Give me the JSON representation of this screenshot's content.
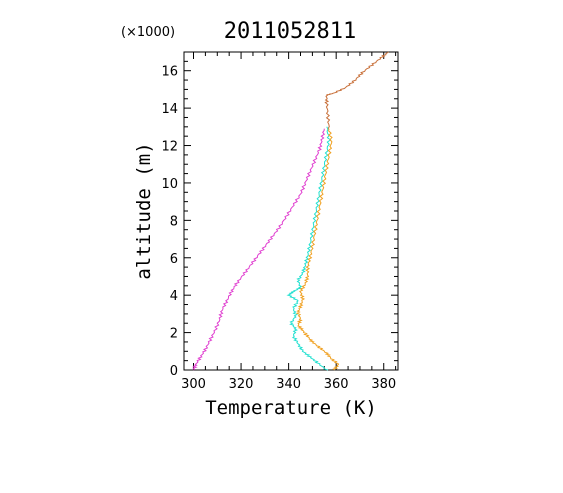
{
  "chart_data": {
    "type": "line",
    "title": "2011052811",
    "xlabel": "Temperature (K)",
    "ylabel": "altitude (m)",
    "y_multiplier": "(×1000)",
    "xlim": [
      296,
      386
    ],
    "ylim": [
      0,
      17
    ],
    "xticks": [
      300,
      320,
      340,
      360,
      380
    ],
    "yticks": [
      0,
      2,
      4,
      6,
      8,
      10,
      12,
      14,
      16
    ],
    "grid": false,
    "series": [
      {
        "color": "#e040d0",
        "points": [
          [
            300,
            0
          ],
          [
            301,
            0.3
          ],
          [
            303,
            0.7
          ],
          [
            305,
            1.1
          ],
          [
            307,
            1.6
          ],
          [
            309,
            2.1
          ],
          [
            311,
            2.7
          ],
          [
            312,
            3.2
          ],
          [
            314,
            3.7
          ],
          [
            316,
            4.2
          ],
          [
            318,
            4.6
          ],
          [
            321,
            5.1
          ],
          [
            324,
            5.6
          ],
          [
            327,
            6.1
          ],
          [
            330,
            6.6
          ],
          [
            333,
            7.1
          ],
          [
            336,
            7.6
          ],
          [
            339,
            8.2
          ],
          [
            342,
            8.8
          ],
          [
            345,
            9.4
          ],
          [
            347,
            10.0
          ],
          [
            349,
            10.6
          ],
          [
            351,
            11.2
          ],
          [
            353,
            11.8
          ],
          [
            354,
            12.3
          ],
          [
            355,
            12.9
          ]
        ]
      },
      {
        "color": "#20e0d0",
        "points": [
          [
            356,
            0
          ],
          [
            352,
            0.4
          ],
          [
            349,
            0.7
          ],
          [
            346,
            1.0
          ],
          [
            344,
            1.4
          ],
          [
            342,
            1.8
          ],
          [
            343,
            2.2
          ],
          [
            341,
            2.5
          ],
          [
            343,
            2.9
          ],
          [
            342,
            3.3
          ],
          [
            344,
            3.7
          ],
          [
            340,
            4.0
          ],
          [
            342,
            4.2
          ],
          [
            345,
            4.4
          ],
          [
            344,
            4.8
          ],
          [
            346,
            5.2
          ],
          [
            347,
            5.6
          ],
          [
            348,
            6.1
          ],
          [
            349,
            6.7
          ],
          [
            350,
            7.4
          ],
          [
            351,
            8.1
          ],
          [
            352,
            8.8
          ],
          [
            353,
            9.5
          ],
          [
            354,
            10.2
          ],
          [
            355,
            10.9
          ],
          [
            356,
            11.6
          ],
          [
            357,
            12.3
          ],
          [
            356,
            13.0
          ]
        ]
      },
      {
        "color": "#f0a020",
        "points": [
          [
            359,
            0
          ],
          [
            361,
            0.3
          ],
          [
            358,
            0.6
          ],
          [
            356,
            0.9
          ],
          [
            353,
            1.2
          ],
          [
            350,
            1.5
          ],
          [
            348,
            1.8
          ],
          [
            346,
            2.1
          ],
          [
            344,
            2.4
          ],
          [
            345,
            2.7
          ],
          [
            344,
            3.1
          ],
          [
            345,
            3.4
          ],
          [
            346,
            3.8
          ],
          [
            345,
            4.2
          ],
          [
            347,
            4.6
          ],
          [
            348,
            5.0
          ],
          [
            348,
            5.5
          ],
          [
            349,
            6.0
          ],
          [
            350,
            6.6
          ],
          [
            351,
            7.3
          ],
          [
            352,
            8.0
          ],
          [
            353,
            8.7
          ],
          [
            354,
            9.4
          ],
          [
            355,
            10.1
          ],
          [
            356,
            10.8
          ],
          [
            357,
            11.5
          ],
          [
            358,
            12.2
          ],
          [
            357,
            12.9
          ]
        ]
      },
      {
        "color": "#c8703a",
        "points": [
          [
            357,
            12.9
          ],
          [
            356.5,
            13.6
          ],
          [
            356,
            14.3
          ],
          [
            356,
            14.7
          ],
          [
            359,
            14.8
          ],
          [
            364,
            15.1
          ],
          [
            368,
            15.5
          ],
          [
            371,
            15.9
          ],
          [
            375,
            16.3
          ],
          [
            379,
            16.7
          ],
          [
            382,
            17.0
          ]
        ]
      }
    ]
  }
}
